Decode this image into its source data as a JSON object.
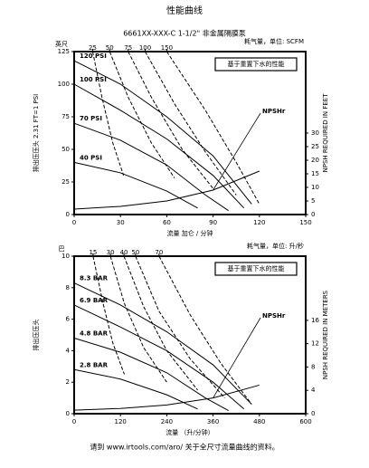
{
  "header": {
    "title": "性能曲线",
    "subtitle": "6661XX-XXX-C 1-1/2\" 非金属隔膜泵"
  },
  "footer": "请到 www.irtools.com/aro/ 关于全尺寸流量曲线的资料。",
  "chart_data": [
    {
      "type": "line",
      "top_label": "耗气量，单位: SCFM",
      "y_unit": "英尺",
      "ylabel": "排出压压头 2.31 FT=1 PSI",
      "y2label": "NPSH REQUIRED IN FEET",
      "xlabel": "流量 加仑 / 分钟",
      "note": "基于重置下水的性能",
      "xlim": [
        0,
        150
      ],
      "xticks": [
        0,
        30,
        60,
        90,
        120,
        150
      ],
      "ylim": [
        0,
        125
      ],
      "yticks": [
        0,
        25,
        50,
        75,
        100,
        125
      ],
      "y2lim": [
        0,
        60
      ],
      "y2ticks": [
        0,
        5,
        10,
        15,
        20,
        25,
        30
      ],
      "series": [
        {
          "name": "120 PSI",
          "color": "#000000",
          "x": [
            0,
            30,
            60,
            90,
            115
          ],
          "values": [
            118,
            100,
            75,
            45,
            8
          ]
        },
        {
          "name": "100 PSI",
          "color": "#000000",
          "x": [
            0,
            30,
            60,
            90,
            110
          ],
          "values": [
            100,
            80,
            58,
            30,
            5
          ]
        },
        {
          "name": "70 PSI",
          "color": "#000000",
          "x": [
            0,
            30,
            60,
            85,
            100
          ],
          "values": [
            70,
            57,
            38,
            15,
            3
          ]
        },
        {
          "name": "40 PSI",
          "color": "#000000",
          "x": [
            0,
            30,
            60,
            80
          ],
          "values": [
            40,
            32,
            18,
            5
          ]
        },
        {
          "name": "NPSHr",
          "color": "#000000",
          "axis": "y2",
          "x": [
            0,
            30,
            60,
            90,
            120
          ],
          "values": [
            2,
            3,
            5,
            9,
            16
          ]
        },
        {
          "name": "25",
          "color": "#000000",
          "style": "dashed",
          "x": [
            12,
            18,
            25,
            32
          ],
          "values": [
            125,
            90,
            55,
            30
          ]
        },
        {
          "name": "50",
          "color": "#000000",
          "style": "dashed",
          "x": [
            23,
            35,
            50,
            65
          ],
          "values": [
            125,
            90,
            55,
            28
          ]
        },
        {
          "name": "75",
          "color": "#000000",
          "style": "dashed",
          "x": [
            35,
            50,
            70,
            90
          ],
          "values": [
            125,
            90,
            50,
            20
          ]
        },
        {
          "name": "100",
          "color": "#000000",
          "style": "dashed",
          "x": [
            46,
            65,
            85,
            105
          ],
          "values": [
            125,
            85,
            48,
            15
          ]
        },
        {
          "name": "150",
          "color": "#000000",
          "style": "dashed",
          "x": [
            60,
            85,
            105,
            120
          ],
          "values": [
            125,
            80,
            40,
            8
          ]
        }
      ]
    },
    {
      "type": "line",
      "top_label": "耗气量，单位: 升/秒",
      "y_unit": "巴",
      "ylabel": "排出压压头",
      "y2label": "NPSH REQUIRED IN METERS",
      "xlabel": "流量 （升/分钟）",
      "note": "基于重置下水的性能",
      "xlim": [
        0,
        600
      ],
      "xticks": [
        0,
        120,
        240,
        360,
        480,
        600
      ],
      "ylim": [
        0,
        10
      ],
      "yticks": [
        0,
        2,
        4,
        6,
        8,
        10
      ],
      "y2lim": [
        0,
        27
      ],
      "y2ticks": [
        0,
        4,
        8,
        12,
        16
      ],
      "series": [
        {
          "name": "8.3 BAR",
          "color": "#000000",
          "x": [
            0,
            120,
            240,
            360,
            460
          ],
          "values": [
            8.3,
            6.9,
            5.2,
            3.1,
            0.6
          ]
        },
        {
          "name": "6.9 BAR",
          "color": "#000000",
          "x": [
            0,
            120,
            240,
            360,
            440
          ],
          "values": [
            6.9,
            5.5,
            4,
            2,
            0.3
          ]
        },
        {
          "name": "4.8 BAR",
          "color": "#000000",
          "x": [
            0,
            120,
            240,
            340,
            400
          ],
          "values": [
            4.8,
            3.9,
            2.6,
            1,
            0.2
          ]
        },
        {
          "name": "2.8 BAR",
          "color": "#000000",
          "x": [
            0,
            120,
            240,
            320
          ],
          "values": [
            2.8,
            2.2,
            1.2,
            0.3
          ]
        },
        {
          "name": "NPSHr",
          "color": "#000000",
          "axis": "y2",
          "x": [
            0,
            120,
            240,
            360,
            480
          ],
          "values": [
            0.6,
            0.9,
            1.5,
            2.7,
            4.9
          ]
        },
        {
          "name": "15",
          "color": "#000000",
          "style": "dashed",
          "x": [
            49,
            75,
            100,
            130
          ],
          "values": [
            10,
            7,
            4.5,
            2.5
          ]
        },
        {
          "name": "30",
          "color": "#000000",
          "style": "dashed",
          "x": [
            94,
            130,
            180,
            240
          ],
          "values": [
            10,
            7,
            4.2,
            2
          ]
        },
        {
          "name": "40",
          "color": "#000000",
          "style": "dashed",
          "x": [
            129,
            180,
            240,
            320
          ],
          "values": [
            10,
            6.8,
            4,
            1.5
          ]
        },
        {
          "name": "50",
          "color": "#000000",
          "style": "dashed",
          "x": [
            159,
            220,
            300,
            390
          ],
          "values": [
            10,
            6.5,
            3.5,
            1
          ]
        },
        {
          "name": "70",
          "color": "#000000",
          "style": "dashed",
          "x": [
            220,
            300,
            380,
            460
          ],
          "values": [
            10,
            6.3,
            3.2,
            0.6
          ]
        }
      ]
    }
  ]
}
